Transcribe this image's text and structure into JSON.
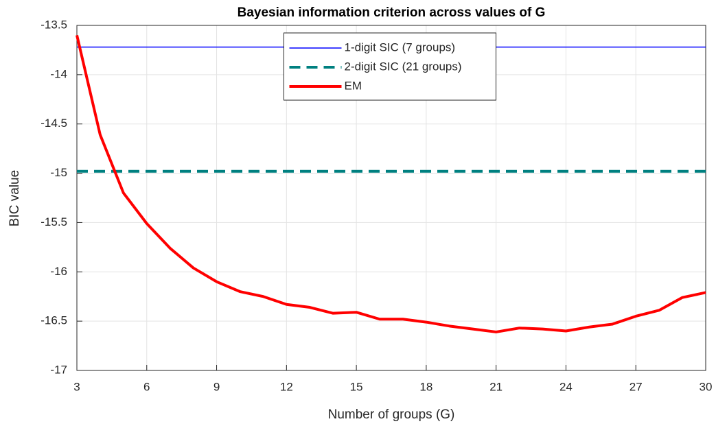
{
  "chart_data": {
    "type": "line",
    "title": "Bayesian information criterion across values of G",
    "x_label": "Number of groups (G)",
    "y_label": "BIC value",
    "x": [
      3,
      4,
      5,
      6,
      7,
      8,
      9,
      10,
      11,
      12,
      13,
      14,
      15,
      16,
      17,
      18,
      19,
      20,
      21,
      22,
      23,
      24,
      25,
      26,
      27,
      28,
      29,
      30
    ],
    "series": [
      {
        "name": "1-digit SIC (7 groups)",
        "color": "#0000ff",
        "line_style": "solid",
        "line_width": 1.5,
        "values": [
          -13.72,
          -13.72,
          -13.72,
          -13.72,
          -13.72,
          -13.72,
          -13.72,
          -13.72,
          -13.72,
          -13.72,
          -13.72,
          -13.72,
          -13.72,
          -13.72,
          -13.72,
          -13.72,
          -13.72,
          -13.72,
          -13.72,
          -13.72,
          -13.72,
          -13.72,
          -13.72,
          -13.72,
          -13.72,
          -13.72,
          -13.72,
          -13.72
        ]
      },
      {
        "name": "2-digit SIC (21 groups)",
        "color": "#008080",
        "line_style": "dashed",
        "line_width": 4,
        "values": [
          -14.98,
          -14.98,
          -14.98,
          -14.98,
          -14.98,
          -14.98,
          -14.98,
          -14.98,
          -14.98,
          -14.98,
          -14.98,
          -14.98,
          -14.98,
          -14.98,
          -14.98,
          -14.98,
          -14.98,
          -14.98,
          -14.98,
          -14.98,
          -14.98,
          -14.98,
          -14.98,
          -14.98,
          -14.98,
          -14.98,
          -14.98,
          -14.98
        ]
      },
      {
        "name": "EM",
        "color": "#ff0000",
        "line_style": "solid",
        "line_width": 4,
        "values": [
          -13.6,
          -14.61,
          -15.2,
          -15.51,
          -15.76,
          -15.96,
          -16.1,
          -16.2,
          -16.25,
          -16.33,
          -16.36,
          -16.42,
          -16.41,
          -16.48,
          -16.48,
          -16.51,
          -16.55,
          -16.58,
          -16.61,
          -16.57,
          -16.58,
          -16.6,
          -16.56,
          -16.53,
          -16.45,
          -16.39,
          -16.26,
          -16.21
        ]
      }
    ],
    "xlim": [
      3,
      30
    ],
    "xticks": [
      3,
      6,
      9,
      12,
      15,
      18,
      21,
      24,
      27,
      30
    ],
    "ylim": [
      -17,
      -13.5
    ],
    "yticks": [
      -17,
      -16.5,
      -16,
      -15.5,
      -15,
      -14.5,
      -14,
      -13.5
    ],
    "grid": true,
    "legend": "north"
  }
}
